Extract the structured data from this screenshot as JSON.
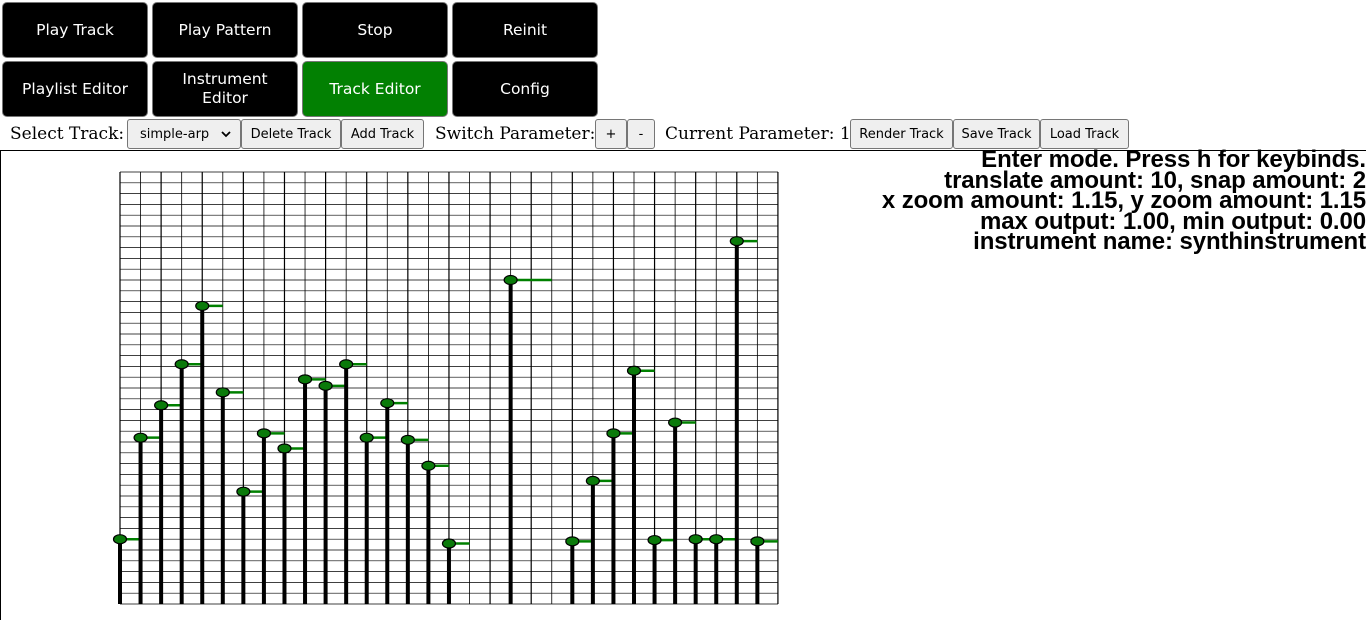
{
  "nav": {
    "row1": [
      "Play Track",
      "Play Pattern",
      "Stop",
      "Reinit"
    ],
    "row2": [
      "Playlist Editor",
      "Instrument Editor",
      "Track Editor",
      "Config"
    ],
    "active": "Track Editor"
  },
  "toolbar": {
    "select_track_label": "Select Track:",
    "selected_track": "simple-arp",
    "delete_track": "Delete Track",
    "add_track": "Add Track",
    "switch_parameter_label": "Switch Parameter:",
    "plus": "+",
    "minus": "-",
    "current_parameter": "Current Parameter: 1",
    "render_track": "Render Track",
    "save_track": "Save Track",
    "load_track": "Load Track"
  },
  "info": {
    "line1": "Enter mode. Press h for keybinds.",
    "line2": "translate amount: 10, snap amount: 2",
    "line3": "x zoom amount: 1.15, y zoom amount: 1.15",
    "line4": "max output: 1.00, min output: 0.00",
    "line5": "instrument name: synthinstrument"
  },
  "colors": {
    "active_button": "#028002",
    "note_fill": "#0a7a0a",
    "note_tail": "#008000"
  },
  "notes": [
    {
      "step": 0,
      "value": 0.15,
      "len": 1
    },
    {
      "step": 1,
      "value": 0.385,
      "len": 1
    },
    {
      "step": 2,
      "value": 0.46,
      "len": 1
    },
    {
      "step": 3,
      "value": 0.555,
      "len": 1
    },
    {
      "step": 4,
      "value": 0.69,
      "len": 1
    },
    {
      "step": 5,
      "value": 0.49,
      "len": 1
    },
    {
      "step": 6,
      "value": 0.26,
      "len": 1
    },
    {
      "step": 7,
      "value": 0.395,
      "len": 1
    },
    {
      "step": 8,
      "value": 0.36,
      "len": 1
    },
    {
      "step": 9,
      "value": 0.52,
      "len": 1
    },
    {
      "step": 10,
      "value": 0.505,
      "len": 1
    },
    {
      "step": 11,
      "value": 0.555,
      "len": 1
    },
    {
      "step": 12,
      "value": 0.385,
      "len": 1
    },
    {
      "step": 13,
      "value": 0.465,
      "len": 1
    },
    {
      "step": 14,
      "value": 0.38,
      "len": 1
    },
    {
      "step": 15,
      "value": 0.32,
      "len": 1
    },
    {
      "step": 16,
      "value": 0.14,
      "len": 1
    },
    {
      "step": 19,
      "value": 0.75,
      "len": 2
    },
    {
      "step": 22,
      "value": 0.145,
      "len": 1
    },
    {
      "step": 23,
      "value": 0.285,
      "len": 1
    },
    {
      "step": 24,
      "value": 0.395,
      "len": 1
    },
    {
      "step": 25,
      "value": 0.54,
      "len": 1
    },
    {
      "step": 26,
      "value": 0.148,
      "len": 1
    },
    {
      "step": 27,
      "value": 0.42,
      "len": 1
    },
    {
      "step": 28,
      "value": 0.15,
      "len": 1
    },
    {
      "step": 29,
      "value": 0.15,
      "len": 1
    },
    {
      "step": 30,
      "value": 0.84,
      "len": 1
    },
    {
      "step": 31,
      "value": 0.145,
      "len": 1
    }
  ]
}
